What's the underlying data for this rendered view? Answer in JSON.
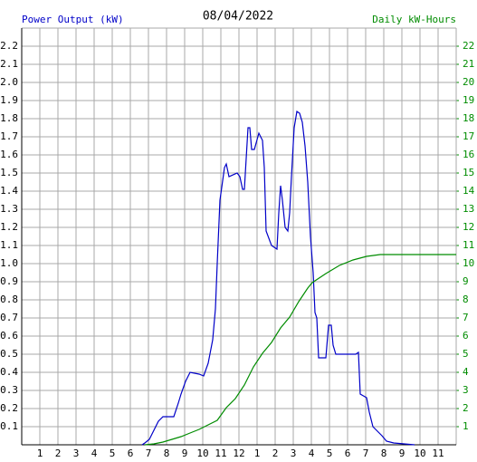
{
  "chart_data": {
    "type": "line",
    "title": "08/04/2022",
    "ylabel": "Power Output (kW)",
    "y2label": "Daily kW-Hours",
    "xlim": [
      0,
      24
    ],
    "xticks": [
      1,
      2,
      3,
      4,
      5,
      6,
      7,
      8,
      9,
      10,
      11,
      12,
      {
        "value": 13,
        "label": "1"
      },
      {
        "value": 14,
        "label": "2"
      },
      {
        "value": 15,
        "label": "3"
      },
      {
        "value": 16,
        "label": "4"
      },
      {
        "value": 17,
        "label": "5"
      },
      {
        "value": 18,
        "label": "6"
      },
      {
        "value": 19,
        "label": "7"
      },
      {
        "value": 20,
        "label": "8"
      },
      {
        "value": 21,
        "label": "9"
      },
      {
        "value": 22,
        "label": "10"
      },
      {
        "value": 23,
        "label": "11"
      }
    ],
    "ylim": [
      0,
      2.3
    ],
    "yticks": [
      0.1,
      0.2,
      0.3,
      0.4,
      0.5,
      0.6,
      0.7,
      0.8,
      0.9,
      {
        "value": 1,
        "label": "1.0"
      },
      1.1,
      1.2,
      1.3,
      1.4,
      1.5,
      1.6,
      1.7,
      1.8,
      1.9,
      {
        "value": 2,
        "label": "2.0"
      },
      2.1,
      2.2
    ],
    "y2lim": [
      0,
      23
    ],
    "y2ticks": [
      1,
      2,
      3,
      4,
      5,
      6,
      7,
      8,
      9,
      10,
      11,
      12,
      13,
      14,
      15,
      16,
      17,
      18,
      19,
      20,
      21,
      22
    ],
    "grid": true,
    "series": [
      {
        "color": "#0000c8",
        "axis": "y",
        "x": [
          6.65,
          6.8,
          7.05,
          7.3,
          7.55,
          7.8,
          8.4,
          8.65,
          8.8,
          9.05,
          9.3,
          9.8,
          10.05,
          10.3,
          10.55,
          10.7,
          10.8,
          10.95,
          11.2,
          11.3,
          11.45,
          11.9,
          12.05,
          12.2,
          12.3,
          12.5,
          12.6,
          12.7,
          12.85,
          13.1,
          13.3,
          13.4,
          13.5,
          13.8,
          14.1,
          14.2,
          14.3,
          14.4,
          14.55,
          14.7,
          14.8,
          14.9,
          15.05,
          15.2,
          15.35,
          15.5,
          15.65,
          15.8,
          15.95,
          16.1,
          16.2,
          16.3,
          16.4,
          16.8,
          16.95,
          17.1,
          17.2,
          17.35,
          18.45,
          18.6,
          18.7,
          19.05,
          19.2,
          19.4,
          19.6,
          19.9,
          20.15,
          20.55,
          21.7
        ],
        "values": [
          0,
          0.01,
          0.03,
          0.08,
          0.13,
          0.155,
          0.155,
          0.23,
          0.28,
          0.35,
          0.4,
          0.39,
          0.38,
          0.45,
          0.58,
          0.75,
          1.0,
          1.35,
          1.53,
          1.55,
          1.48,
          1.5,
          1.48,
          1.41,
          1.41,
          1.75,
          1.75,
          1.63,
          1.63,
          1.72,
          1.68,
          1.53,
          1.18,
          1.1,
          1.08,
          1.28,
          1.43,
          1.35,
          1.2,
          1.18,
          1.28,
          1.48,
          1.75,
          1.84,
          1.83,
          1.78,
          1.65,
          1.45,
          1.15,
          0.95,
          0.73,
          0.7,
          0.48,
          0.48,
          0.66,
          0.66,
          0.55,
          0.5,
          0.5,
          0.51,
          0.28,
          0.26,
          0.18,
          0.1,
          0.08,
          0.05,
          0.02,
          0.01,
          0
        ]
      },
      {
        "color": "#008c00",
        "axis": "y2",
        "x": [
          6.8,
          7.3,
          7.8,
          8.3,
          8.8,
          9.3,
          9.8,
          10.3,
          10.8,
          11.3,
          11.8,
          12.3,
          12.8,
          13.3,
          13.8,
          14.3,
          14.8,
          15.3,
          15.8,
          16.05,
          16.8,
          17.55,
          18.3,
          19.05,
          19.8,
          24
        ],
        "values": [
          0,
          0.05,
          0.15,
          0.3,
          0.45,
          0.65,
          0.85,
          1.1,
          1.35,
          2.05,
          2.55,
          3.3,
          4.3,
          5.05,
          5.65,
          6.45,
          7.05,
          7.9,
          8.65,
          8.95,
          9.45,
          9.9,
          10.2,
          10.4,
          10.5,
          10.5
        ]
      }
    ]
  }
}
